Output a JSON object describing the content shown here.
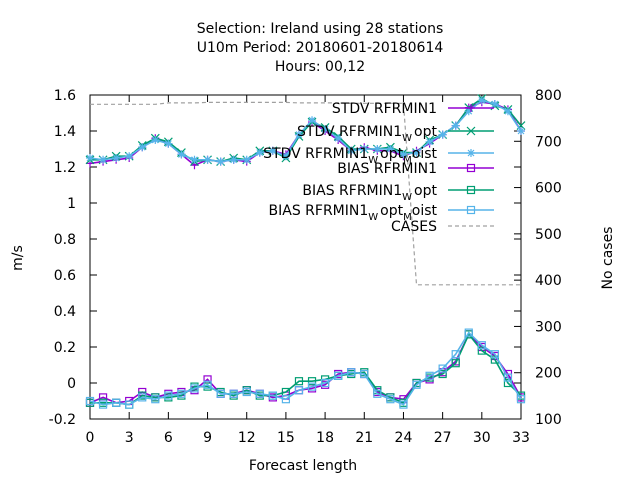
{
  "chart_data": {
    "type": "line",
    "title_lines": [
      "Selection: Ireland using    28 stations",
      "U10m   Period: 20180601-20180614",
      "Hours:  00,12"
    ],
    "xlabel": "Forecast length",
    "ylabel": "m/s",
    "y2label": "No cases",
    "xlim": [
      0,
      33
    ],
    "ylim": [
      -0.2,
      1.6
    ],
    "y2lim": [
      100,
      800
    ],
    "x_ticks": [
      0,
      3,
      6,
      9,
      12,
      15,
      18,
      21,
      24,
      27,
      30,
      33
    ],
    "y_ticks": [
      "-0.2",
      "0",
      "0.2",
      "0.4",
      "0.6",
      "0.8",
      "1",
      "1.2",
      "1.4",
      "1.6"
    ],
    "y2_ticks": [
      "100",
      "200",
      "300",
      "400",
      "500",
      "600",
      "700",
      "800"
    ],
    "legend_position": "top-right",
    "x": [
      0,
      1,
      2,
      3,
      4,
      5,
      6,
      7,
      8,
      9,
      10,
      11,
      12,
      13,
      14,
      15,
      16,
      17,
      18,
      19,
      20,
      21,
      22,
      23,
      24,
      25,
      26,
      27,
      28,
      29,
      30,
      31,
      32,
      33
    ],
    "series": [
      {
        "name": "STDV RFRMIN1",
        "label_main": "STDV RFRMIN1",
        "label_sub": "",
        "label_rest": "",
        "axis": "y1",
        "color": "#9400d3",
        "marker": "plus",
        "dash": false,
        "values": [
          1.22,
          1.23,
          1.24,
          1.25,
          1.31,
          1.36,
          1.33,
          1.27,
          1.21,
          1.24,
          1.23,
          1.24,
          1.23,
          1.28,
          1.29,
          1.27,
          1.38,
          1.45,
          1.4,
          1.35,
          1.29,
          1.31,
          1.29,
          1.29,
          1.26,
          1.29,
          1.33,
          1.38,
          1.43,
          1.53,
          1.56,
          1.55,
          1.52,
          1.4
        ]
      },
      {
        "name": "STDV RFRMIN1_W opt",
        "label_main": "STDV RFRMIN1",
        "label_sub": "W",
        "label_rest": "opt",
        "axis": "y1",
        "color": "#009e73",
        "marker": "x",
        "dash": false,
        "values": [
          1.24,
          1.24,
          1.26,
          1.26,
          1.32,
          1.36,
          1.34,
          1.28,
          1.23,
          1.24,
          1.23,
          1.25,
          1.24,
          1.29,
          1.29,
          1.25,
          1.37,
          1.45,
          1.42,
          1.37,
          1.3,
          1.3,
          1.3,
          1.31,
          1.28,
          1.28,
          1.35,
          1.38,
          1.43,
          1.53,
          1.58,
          1.54,
          1.52,
          1.43
        ]
      },
      {
        "name": "STDV RFRMIN1_W opt_M oist",
        "label_main": "STDV RFRMIN1",
        "label_sub": "W",
        "label_rest": "opt",
        "label_sub2": "M",
        "label_rest2": "oist",
        "axis": "y1",
        "color": "#56b4e9",
        "marker": "star",
        "dash": false,
        "values": [
          1.25,
          1.24,
          1.25,
          1.26,
          1.31,
          1.35,
          1.33,
          1.27,
          1.24,
          1.24,
          1.23,
          1.24,
          1.24,
          1.28,
          1.29,
          1.26,
          1.38,
          1.46,
          1.41,
          1.36,
          1.29,
          1.3,
          1.3,
          1.3,
          1.27,
          1.28,
          1.34,
          1.38,
          1.43,
          1.51,
          1.57,
          1.55,
          1.51,
          1.4
        ]
      },
      {
        "name": "BIAS RFRMIN1",
        "label_main": "BIAS RFRMIN1",
        "label_sub": "",
        "label_rest": "",
        "axis": "y1",
        "color": "#9400d3",
        "marker": "square",
        "dash": false,
        "values": [
          -0.11,
          -0.08,
          -0.11,
          -0.1,
          -0.05,
          -0.08,
          -0.06,
          -0.05,
          -0.04,
          0.02,
          -0.06,
          -0.06,
          -0.04,
          -0.06,
          -0.08,
          -0.07,
          -0.04,
          -0.03,
          -0.01,
          0.05,
          0.06,
          0.05,
          -0.05,
          -0.08,
          -0.09,
          0.0,
          0.02,
          0.06,
          0.12,
          0.27,
          0.2,
          0.15,
          0.05,
          -0.08
        ]
      },
      {
        "name": "BIAS RFRMIN1_W opt",
        "label_main": "BIAS RFRMIN1",
        "label_sub": "W",
        "label_rest": "opt",
        "axis": "y1",
        "color": "#009e73",
        "marker": "square",
        "dash": false,
        "values": [
          -0.11,
          -0.11,
          -0.11,
          -0.12,
          -0.07,
          -0.08,
          -0.08,
          -0.07,
          -0.02,
          -0.02,
          -0.05,
          -0.07,
          -0.04,
          -0.07,
          -0.07,
          -0.05,
          0.01,
          0.01,
          0.02,
          0.04,
          0.05,
          0.06,
          -0.04,
          -0.08,
          -0.11,
          0.0,
          0.03,
          0.05,
          0.11,
          0.27,
          0.18,
          0.13,
          0.0,
          -0.07
        ]
      },
      {
        "name": "BIAS RFRMIN1_W opt_M oist",
        "label_main": "BIAS RFRMIN1",
        "label_sub": "W",
        "label_rest": "opt",
        "label_sub2": "M",
        "label_rest2": "oist",
        "axis": "y1",
        "color": "#56b4e9",
        "marker": "square",
        "dash": false,
        "values": [
          -0.1,
          -0.12,
          -0.11,
          -0.12,
          -0.08,
          -0.09,
          -0.07,
          -0.06,
          -0.03,
          -0.01,
          -0.06,
          -0.06,
          -0.05,
          -0.06,
          -0.07,
          -0.09,
          -0.04,
          -0.02,
          0.0,
          0.04,
          0.06,
          0.05,
          -0.06,
          -0.09,
          -0.12,
          -0.01,
          0.04,
          0.08,
          0.16,
          0.28,
          0.21,
          0.16,
          0.03,
          -0.09
        ]
      },
      {
        "name": "CASES",
        "label_main": "CASES",
        "label_sub": "",
        "label_rest": "",
        "axis": "y2",
        "color": "#a0a0a0",
        "marker": "none",
        "dash": true,
        "values": [
          780,
          780,
          780,
          780,
          780,
          780,
          783,
          783,
          783,
          784,
          784,
          784,
          784,
          784,
          784,
          784,
          783,
          783,
          783,
          783,
          782,
          782,
          782,
          782,
          782,
          390,
          390,
          390,
          390,
          390,
          390,
          390,
          390,
          390
        ]
      }
    ]
  }
}
